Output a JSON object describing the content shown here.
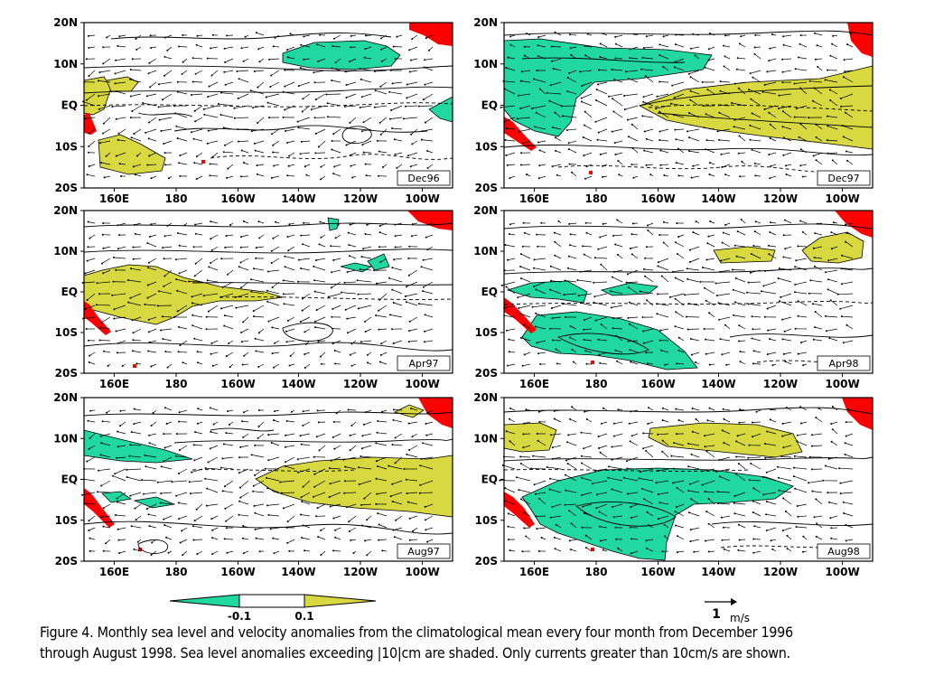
{
  "caption": {
    "line1": "Figure 4. Monthly sea level and velocity anomalies from the climatological mean every four month from December 1996",
    "line2": "through August 1998. Sea level anomalies exceeding |10|cm are shaded. Only currents greater than 10cm/s are shown."
  },
  "axes": {
    "lat_ticks": [
      "20N",
      "10N",
      "EQ",
      "10S",
      "20S"
    ],
    "lon_ticks": [
      "160E",
      "180",
      "160W",
      "140W",
      "120W",
      "100W"
    ]
  },
  "panels": [
    {
      "label": "Dec96"
    },
    {
      "label": "Dec97"
    },
    {
      "label": "Apr97"
    },
    {
      "label": "Apr98"
    },
    {
      "label": "Aug97"
    },
    {
      "label": "Aug98"
    }
  ],
  "colorbar": {
    "low_label": "-0.1",
    "high_label": "0.1",
    "negative_color": "#20d8a0",
    "positive_color": "#d8d840"
  },
  "vector_scale": {
    "value": "1",
    "unit": "m/s"
  },
  "colors": {
    "land": "#ff0000",
    "contour": "#000000"
  }
}
